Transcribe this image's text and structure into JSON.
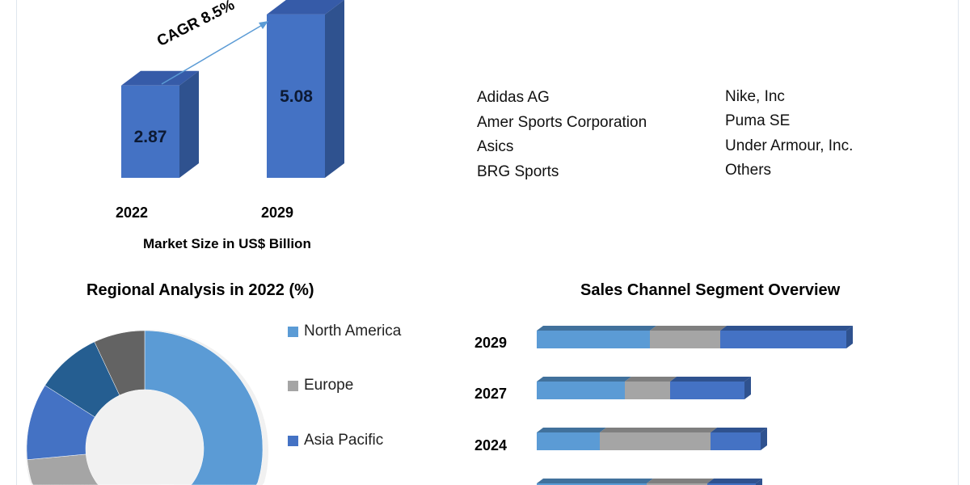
{
  "chart_data": [
    {
      "type": "bar",
      "categories": [
        "2022",
        "2029"
      ],
      "values": [
        2.87,
        5.08
      ],
      "data_labels": [
        "2.87",
        "5.08"
      ],
      "xlabel": "Market Size in US$ Billion",
      "annotation": "CAGR 8.5%",
      "style": "3d-column",
      "colors": {
        "front": "#4472c4",
        "side": "#2f528f",
        "top": "#365ba8"
      }
    },
    {
      "type": "pie",
      "style": "donut",
      "title": "Regional Analysis in 2022 (%)",
      "slices": [
        {
          "name": "North America",
          "value": 46,
          "color": "#5b9bd5"
        },
        {
          "name": "Europe",
          "value": 27.5,
          "color": "#a5a5a5"
        },
        {
          "name": "Asia Pacific",
          "value": 10.5,
          "color": "#4472c4"
        },
        {
          "value": 9,
          "color": "#255e91"
        },
        {
          "value": 7,
          "color": "#636363"
        }
      ],
      "legend": "right"
    },
    {
      "type": "bar",
      "orientation": "horizontal",
      "stacked": true,
      "title": "Sales Channel Segment Overview",
      "categories": [
        "2029",
        "2027",
        "2024",
        ""
      ],
      "series": [
        {
          "values": [
            14.0,
            10.9,
            7.8,
            13.6
          ],
          "color": "#5b9bd5"
        },
        {
          "values": [
            8.7,
            5.6,
            13.7,
            7.5
          ],
          "color": "#a5a5a5"
        },
        {
          "values": [
            15.6,
            9.2,
            6.2,
            6.0
          ],
          "color": "#4472c4"
        }
      ]
    }
  ],
  "key_players": {
    "column1": [
      "Adidas AG",
      "Amer Sports Corporation",
      "Asics",
      "BRG Sports"
    ],
    "column2": [
      "Nike, Inc",
      "Puma SE",
      "Under Armour, Inc.",
      "Others"
    ]
  }
}
